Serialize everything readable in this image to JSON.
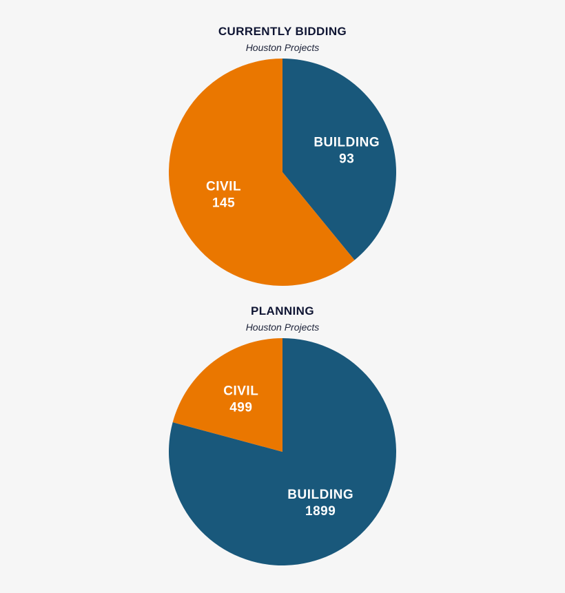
{
  "chart_data": [
    {
      "type": "pie",
      "title": "CURRENTLY BIDDING",
      "subtitle": "Houston Projects",
      "slices": [
        {
          "label": "BUILDING",
          "value": 93,
          "color": "#19587b"
        },
        {
          "label": "CIVIL",
          "value": 145,
          "color": "#ea7700"
        }
      ]
    },
    {
      "type": "pie",
      "title": "PLANNING",
      "subtitle": "Houston Projects",
      "slices": [
        {
          "label": "BUILDING",
          "value": 1899,
          "color": "#19587b"
        },
        {
          "label": "CIVIL",
          "value": 499,
          "color": "#ea7700"
        }
      ]
    }
  ]
}
